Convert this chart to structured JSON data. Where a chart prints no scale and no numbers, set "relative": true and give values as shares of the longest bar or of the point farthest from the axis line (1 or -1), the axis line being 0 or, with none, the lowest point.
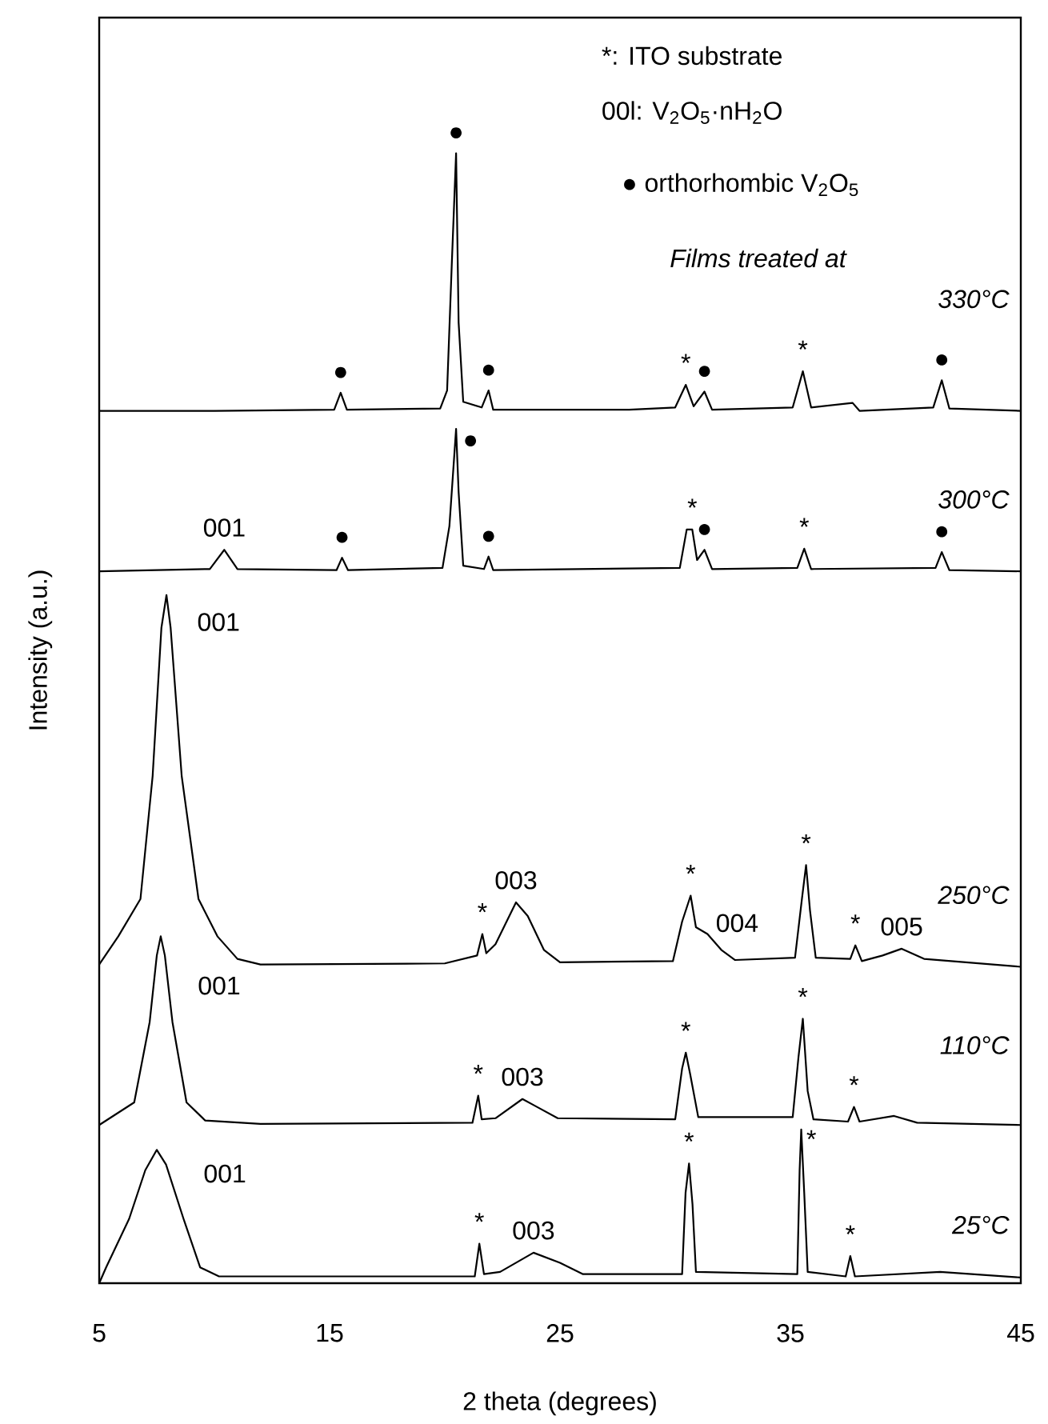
{
  "chart_data": {
    "type": "line",
    "relative": true,
    "xlabel": "2 theta (degrees)",
    "ylabel": "Intensity (a.u.)",
    "xlim": [
      5,
      45
    ],
    "xticks": [
      5,
      15,
      25,
      35,
      45
    ],
    "series": [
      {
        "name": "330°C",
        "color": "#000000",
        "x": [
          5,
          10,
          15.2,
          15.48,
          15.75,
          19.8,
          20.1,
          20.3,
          20.49,
          20.6,
          20.8,
          21.6,
          21.9,
          22.1,
          28,
          30.0,
          30.46,
          30.8,
          31.27,
          31.6,
          35.1,
          35.54,
          35.9,
          37.7,
          38,
          41.2,
          41.57,
          41.9,
          45
        ],
        "values": [
          0.772,
          0.772,
          0.773,
          0.788,
          0.773,
          0.774,
          0.79,
          0.9,
          1.0,
          0.85,
          0.78,
          0.775,
          0.79,
          0.773,
          0.773,
          0.775,
          0.795,
          0.776,
          0.789,
          0.773,
          0.775,
          0.807,
          0.775,
          0.779,
          0.772,
          0.775,
          0.799,
          0.774,
          0.772
        ]
      },
      {
        "name": "300°C",
        "color": "#000000",
        "x": [
          5,
          9.8,
          10.43,
          11,
          15.3,
          15.54,
          15.8,
          19.9,
          20.2,
          20.49,
          20.6,
          20.8,
          21.7,
          21.9,
          22.1,
          30.2,
          30.5,
          30.74,
          30.95,
          31.27,
          31.6,
          35.3,
          35.6,
          35.9,
          41.3,
          41.57,
          41.9,
          45
        ],
        "values": [
          0.63,
          0.632,
          0.649,
          0.632,
          0.631,
          0.642,
          0.631,
          0.633,
          0.67,
          0.756,
          0.7,
          0.635,
          0.632,
          0.643,
          0.631,
          0.633,
          0.667,
          0.667,
          0.64,
          0.649,
          0.632,
          0.633,
          0.65,
          0.632,
          0.633,
          0.647,
          0.631,
          0.63
        ]
      },
      {
        "name": "250°C",
        "color": "#000000",
        "x": [
          5,
          5.83,
          6.79,
          7.32,
          7.7,
          7.92,
          8.1,
          8.58,
          9.31,
          10.13,
          11,
          12,
          20,
          21.4,
          21.63,
          21.8,
          22.2,
          23.09,
          23.6,
          24.3,
          25,
          29.9,
          30.3,
          30.67,
          30.9,
          31.4,
          32,
          32.6,
          35.2,
          35.5,
          35.68,
          35.85,
          36.1,
          37.6,
          37.82,
          38.1,
          39,
          39.83,
          40.8,
          45
        ],
        "values": [
          0.282,
          0.307,
          0.34,
          0.449,
          0.58,
          0.609,
          0.58,
          0.449,
          0.34,
          0.307,
          0.287,
          0.282,
          0.283,
          0.29,
          0.309,
          0.292,
          0.3,
          0.337,
          0.325,
          0.295,
          0.284,
          0.285,
          0.32,
          0.343,
          0.315,
          0.309,
          0.295,
          0.286,
          0.288,
          0.34,
          0.37,
          0.33,
          0.288,
          0.287,
          0.299,
          0.285,
          0.29,
          0.296,
          0.287,
          0.28
        ]
      },
      {
        "name": "110°C",
        "color": "#000000",
        "x": [
          5,
          6.52,
          7.19,
          7.5,
          7.67,
          7.85,
          8.18,
          8.79,
          9.6,
          12,
          21.2,
          21.45,
          21.6,
          22.2,
          23.37,
          24.0,
          24.9,
          30.0,
          30.3,
          30.46,
          30.65,
          31,
          35.1,
          35.35,
          35.54,
          35.75,
          36.0,
          37.5,
          37.76,
          38,
          39.5,
          40.5,
          45
        ],
        "values": [
          0.14,
          0.16,
          0.231,
          0.29,
          0.307,
          0.29,
          0.231,
          0.16,
          0.144,
          0.141,
          0.142,
          0.166,
          0.145,
          0.146,
          0.163,
          0.156,
          0.146,
          0.145,
          0.19,
          0.204,
          0.185,
          0.147,
          0.147,
          0.2,
          0.234,
          0.17,
          0.145,
          0.143,
          0.156,
          0.143,
          0.148,
          0.142,
          0.14
        ]
      },
      {
        "name": "25°C",
        "color": "#000000",
        "x": [
          5,
          5.3,
          6.3,
          7.0,
          7.5,
          7.9,
          8.66,
          9.38,
          10.2,
          21.3,
          21.5,
          21.7,
          22.4,
          23.85,
          25,
          26,
          30.3,
          30.45,
          30.6,
          30.75,
          30.9,
          35.3,
          35.4,
          35.47,
          35.6,
          35.75,
          37.4,
          37.6,
          37.8,
          41.5,
          45
        ],
        "values": [
          0.0,
          0.014,
          0.057,
          0.1,
          0.118,
          0.105,
          0.057,
          0.014,
          0.006,
          0.006,
          0.035,
          0.008,
          0.01,
          0.027,
          0.018,
          0.008,
          0.008,
          0.08,
          0.106,
          0.07,
          0.01,
          0.008,
          0.1,
          0.136,
          0.08,
          0.01,
          0.006,
          0.024,
          0.006,
          0.01,
          0.005
        ]
      }
    ],
    "annotations": [
      "*: ITO substrate",
      "00l: V$_{2}$O$_{5}$·nH$_{2}$O",
      "● orthorhombic V$_{2}$O$_{5}$",
      "Films treated at",
      {
        "text": "●",
        "x": 15.48,
        "y": 0.788
      },
      {
        "text": "●",
        "x": 20.49,
        "y": 1.0
      },
      {
        "text": "●",
        "x": 21.9,
        "y": 0.79
      },
      {
        "text": "*",
        "x": 30.46,
        "y": 0.795
      },
      {
        "text": "●",
        "x": 31.27,
        "y": 0.789
      },
      {
        "text": "*",
        "x": 35.54,
        "y": 0.807
      },
      {
        "text": "●",
        "x": 41.57,
        "y": 0.799
      },
      {
        "text": "001",
        "x": 10.43,
        "y": 0.649
      },
      {
        "text": "●",
        "x": 15.54,
        "y": 0.642
      },
      {
        "text": "●",
        "x": 20.49,
        "y": 0.756
      },
      {
        "text": "●",
        "x": 21.9,
        "y": 0.643
      },
      {
        "text": "*",
        "x": 30.74,
        "y": 0.667
      },
      {
        "text": "●",
        "x": 31.27,
        "y": 0.649
      },
      {
        "text": "*",
        "x": 35.6,
        "y": 0.65
      },
      {
        "text": "●",
        "x": 41.57,
        "y": 0.647
      },
      {
        "text": "001",
        "x": 7.92,
        "y": 0.609
      },
      {
        "text": "*",
        "x": 21.63,
        "y": 0.309
      },
      {
        "text": "003",
        "x": 23.09,
        "y": 0.337
      },
      {
        "text": "*",
        "x": 30.67,
        "y": 0.343
      },
      {
        "text": "004",
        "x": 31.4,
        "y": 0.309
      },
      {
        "text": "*",
        "x": 35.68,
        "y": 0.37
      },
      {
        "text": "*",
        "x": 37.82,
        "y": 0.299
      },
      {
        "text": "005",
        "x": 39.83,
        "y": 0.296
      },
      {
        "text": "001",
        "x": 7.67,
        "y": 0.307
      },
      {
        "text": "*",
        "x": 21.45,
        "y": 0.166
      },
      {
        "text": "003",
        "x": 23.37,
        "y": 0.163
      },
      {
        "text": "*",
        "x": 30.46,
        "y": 0.204
      },
      {
        "text": "*",
        "x": 35.54,
        "y": 0.234
      },
      {
        "text": "*",
        "x": 37.76,
        "y": 0.156
      },
      {
        "text": "001",
        "x": 7.5,
        "y": 0.118
      },
      {
        "text": "*",
        "x": 21.5,
        "y": 0.035
      },
      {
        "text": "003",
        "x": 23.85,
        "y": 0.027
      },
      {
        "text": "*",
        "x": 30.6,
        "y": 0.106
      },
      {
        "text": "*",
        "x": 35.47,
        "y": 0.136
      },
      {
        "text": "*",
        "x": 37.6,
        "y": 0.024
      }
    ]
  }
}
